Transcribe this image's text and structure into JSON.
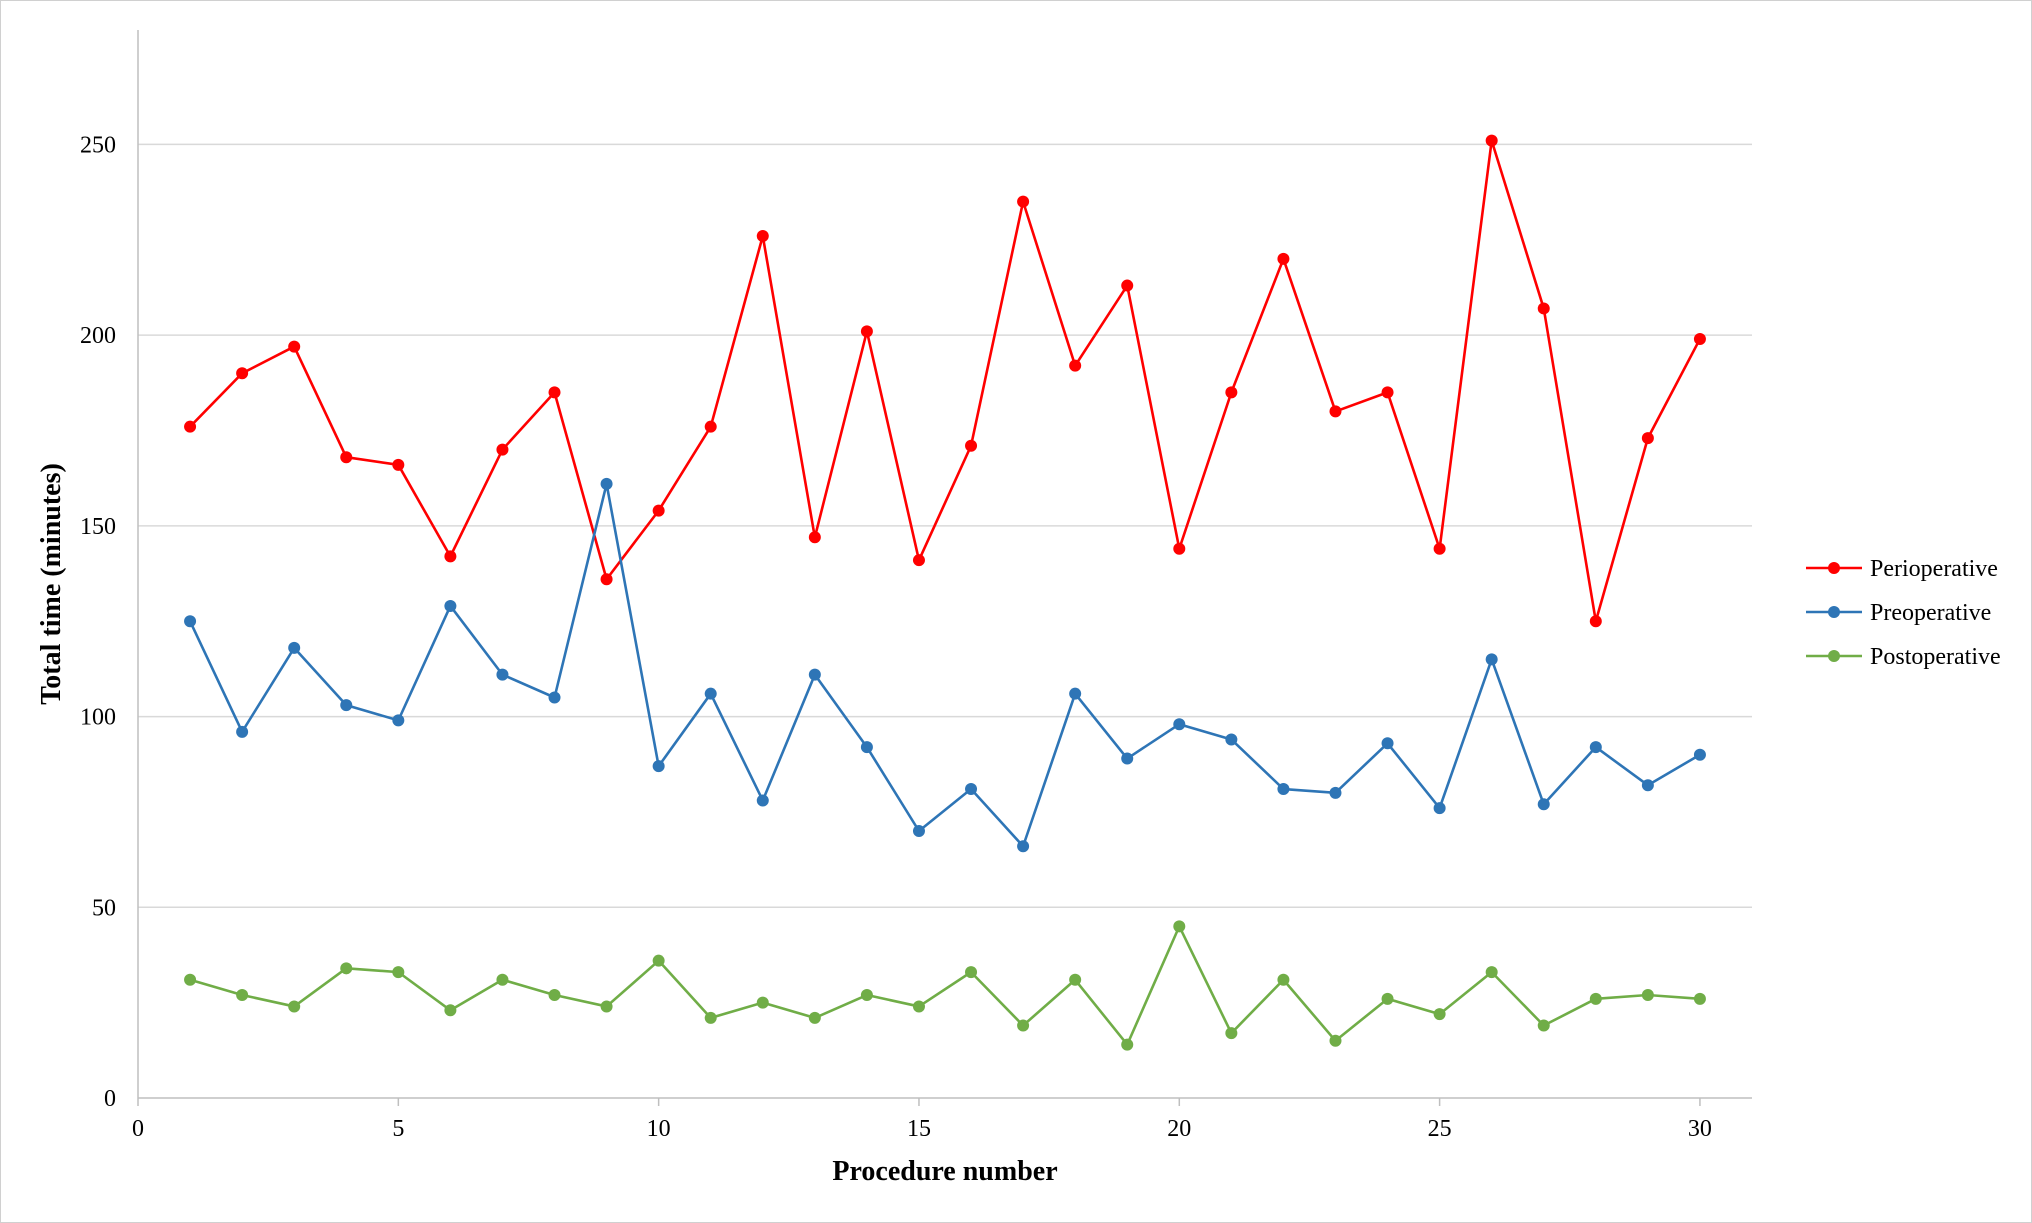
{
  "chart_data": {
    "type": "line",
    "title": "",
    "xlabel": "Procedure number",
    "ylabel": "Total time (minutes)",
    "xlim": [
      0,
      31
    ],
    "ylim": [
      0,
      280
    ],
    "x_ticks": [
      0,
      5,
      10,
      15,
      20,
      25,
      30
    ],
    "y_ticks": [
      0,
      50,
      100,
      150,
      200,
      250
    ],
    "grid": "horizontal",
    "legend_position": "right",
    "x": [
      1,
      2,
      3,
      4,
      5,
      6,
      7,
      8,
      9,
      10,
      11,
      12,
      13,
      14,
      15,
      16,
      17,
      18,
      19,
      20,
      21,
      22,
      23,
      24,
      25,
      26,
      27,
      28,
      29,
      30
    ],
    "series": [
      {
        "name": "Perioperative",
        "color": "#ff0000",
        "values": [
          176,
          190,
          197,
          168,
          166,
          142,
          170,
          185,
          136,
          154,
          176,
          226,
          147,
          201,
          141,
          171,
          235,
          192,
          213,
          144,
          185,
          220,
          180,
          185,
          144,
          251,
          207,
          125,
          173,
          199
        ]
      },
      {
        "name": "Preoperative",
        "color": "#2e75b6",
        "values": [
          125,
          96,
          118,
          103,
          99,
          129,
          111,
          105,
          161,
          87,
          106,
          78,
          111,
          92,
          70,
          81,
          66,
          106,
          89,
          98,
          94,
          81,
          80,
          93,
          76,
          115,
          77,
          92,
          82,
          90
        ]
      },
      {
        "name": "Postoperative",
        "color": "#70ad47",
        "values": [
          31,
          27,
          24,
          34,
          33,
          23,
          31,
          27,
          24,
          36,
          21,
          25,
          21,
          27,
          24,
          33,
          19,
          31,
          14,
          45,
          17,
          31,
          15,
          26,
          22,
          33,
          19,
          26,
          27,
          26
        ]
      }
    ]
  }
}
